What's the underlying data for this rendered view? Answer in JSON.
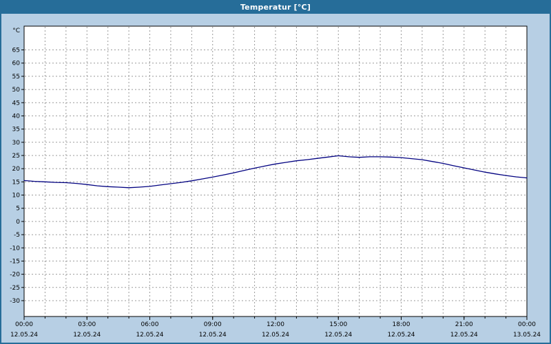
{
  "window": {
    "title": "Temperatur [°C]"
  },
  "colors": {
    "titlebar_bg": "#266d99",
    "titlebar_text": "#ffffff",
    "window_bg": "#b7cfe4",
    "plot_bg": "#ffffff",
    "grid": "#999999",
    "axis": "#000000",
    "text": "#000000",
    "line": "#000080"
  },
  "chart_data": {
    "type": "line",
    "title": "Temperatur [°C]",
    "ylabel": "°C",
    "xlabel": "",
    "ylim": [
      -30,
      65
    ],
    "xlim_hours": [
      0,
      24
    ],
    "grid": "dashed gray, vertical every hour, horizontal every 5 deg",
    "legend": "none",
    "y_ticks": [
      65,
      60,
      55,
      50,
      45,
      40,
      35,
      30,
      25,
      20,
      15,
      10,
      5,
      0,
      -5,
      -10,
      -15,
      -20,
      -25,
      -30
    ],
    "x_ticks": [
      {
        "hour": 0,
        "time": "00:00",
        "date": "12.05.24"
      },
      {
        "hour": 3,
        "time": "03:00",
        "date": "12.05.24"
      },
      {
        "hour": 6,
        "time": "06:00",
        "date": "12.05.24"
      },
      {
        "hour": 9,
        "time": "09:00",
        "date": "12.05.24"
      },
      {
        "hour": 12,
        "time": "12:00",
        "date": "12.05.24"
      },
      {
        "hour": 15,
        "time": "15:00",
        "date": "12.05.24"
      },
      {
        "hour": 18,
        "time": "18:00",
        "date": "12.05.24"
      },
      {
        "hour": 21,
        "time": "21:00",
        "date": "12.05.24"
      },
      {
        "hour": 24,
        "time": "00:00",
        "date": "13.05.24"
      }
    ],
    "series": [
      {
        "name": "Temperatur",
        "color": "#000080",
        "points_hour_degC": [
          [
            0,
            15.5
          ],
          [
            0.5,
            15.2
          ],
          [
            1,
            15.0
          ],
          [
            1.5,
            14.8
          ],
          [
            2,
            14.7
          ],
          [
            2.5,
            14.4
          ],
          [
            3,
            14.0
          ],
          [
            3.5,
            13.5
          ],
          [
            4,
            13.2
          ],
          [
            4.5,
            13.0
          ],
          [
            5,
            12.8
          ],
          [
            5.5,
            13.0
          ],
          [
            6,
            13.3
          ],
          [
            6.5,
            13.8
          ],
          [
            7,
            14.3
          ],
          [
            7.5,
            14.8
          ],
          [
            8,
            15.4
          ],
          [
            8.5,
            16.1
          ],
          [
            9,
            16.8
          ],
          [
            9.5,
            17.6
          ],
          [
            10,
            18.4
          ],
          [
            10.5,
            19.3
          ],
          [
            11,
            20.2
          ],
          [
            11.5,
            21.0
          ],
          [
            12,
            21.8
          ],
          [
            12.5,
            22.4
          ],
          [
            13,
            23.0
          ],
          [
            13.5,
            23.4
          ],
          [
            14,
            23.9
          ],
          [
            14.5,
            24.4
          ],
          [
            15,
            24.9
          ],
          [
            15.5,
            24.5
          ],
          [
            16,
            24.3
          ],
          [
            16.5,
            24.5
          ],
          [
            17,
            24.5
          ],
          [
            17.5,
            24.4
          ],
          [
            18,
            24.2
          ],
          [
            18.5,
            23.8
          ],
          [
            19,
            23.4
          ],
          [
            19.5,
            22.7
          ],
          [
            20,
            22.0
          ],
          [
            20.5,
            21.1
          ],
          [
            21,
            20.3
          ],
          [
            21.5,
            19.5
          ],
          [
            22,
            18.7
          ],
          [
            22.5,
            18.0
          ],
          [
            23,
            17.4
          ],
          [
            23.5,
            16.9
          ],
          [
            24,
            16.5
          ]
        ]
      }
    ]
  }
}
